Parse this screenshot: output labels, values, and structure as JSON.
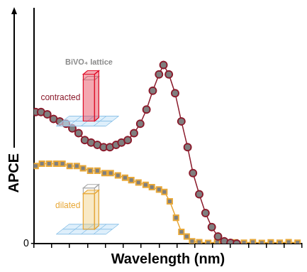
{
  "chart_data": {
    "type": "line",
    "x_label": "Wavelength (nm)",
    "y_label": "APCE",
    "annotations": [
      "BiVO₄ lattice"
    ],
    "xlim": [
      300,
      600
    ],
    "xticks": [
      300,
      320,
      340,
      360,
      380,
      400,
      420,
      440,
      460,
      480,
      500,
      520,
      540,
      560,
      580,
      600
    ],
    "ylim": [
      0,
      1
    ],
    "yticks": [
      0
    ],
    "grid": false,
    "tick_labels": "y",
    "series": [
      {
        "name": "contracted",
        "color": "#8b1a2b",
        "marker": "circle",
        "line_style": "solid",
        "x": [
          302,
          308,
          315,
          322,
          329,
          336,
          343,
          350,
          357,
          364,
          371,
          378,
          385,
          392,
          398,
          405,
          412,
          419,
          426,
          433,
          440,
          445,
          451,
          458,
          465,
          472,
          478,
          485,
          492,
          499,
          506,
          513,
          520,
          527
        ],
        "values": [
          0.56,
          0.56,
          0.55,
          0.53,
          0.52,
          0.51,
          0.49,
          0.47,
          0.44,
          0.43,
          0.42,
          0.41,
          0.41,
          0.42,
          0.43,
          0.44,
          0.47,
          0.51,
          0.57,
          0.65,
          0.72,
          0.76,
          0.72,
          0.64,
          0.52,
          0.41,
          0.3,
          0.21,
          0.13,
          0.07,
          0.03,
          0.01,
          0.003,
          0
        ]
      },
      {
        "name": "dilated",
        "color": "#e8a838",
        "marker": "square",
        "line_style": "solid",
        "x": [
          302,
          309,
          317,
          325,
          332,
          340,
          348,
          355,
          363,
          371,
          379,
          386,
          394,
          402,
          409,
          417,
          425,
          432,
          440,
          446,
          452,
          459,
          465,
          471,
          477,
          485,
          495,
          505,
          515,
          525,
          535,
          545,
          555,
          565,
          575,
          585,
          595
        ],
        "values": [
          0.33,
          0.34,
          0.34,
          0.34,
          0.34,
          0.33,
          0.33,
          0.32,
          0.31,
          0.31,
          0.3,
          0.3,
          0.29,
          0.28,
          0.27,
          0.26,
          0.25,
          0.24,
          0.23,
          0.22,
          0.18,
          0.11,
          0.05,
          0.03,
          0.01,
          0.006,
          0.003,
          0.006,
          0.003,
          0.005,
          0.004,
          0.006,
          0.003,
          0.005,
          0.004,
          0.006,
          0.004
        ]
      }
    ]
  }
}
